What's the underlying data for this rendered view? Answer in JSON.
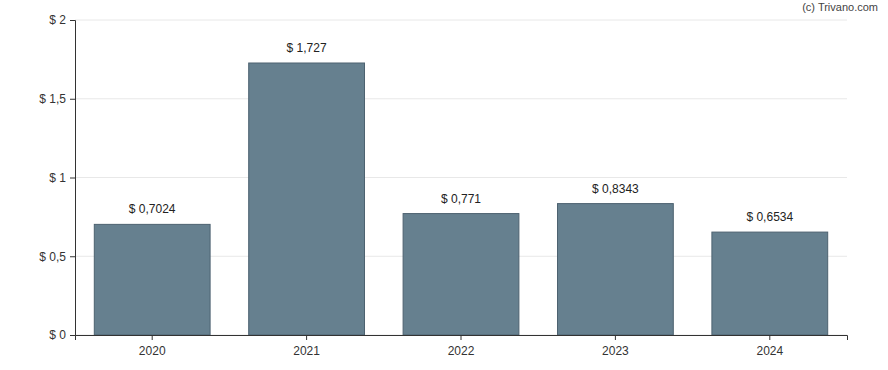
{
  "chart_data": {
    "type": "bar",
    "annotations": [
      "(c) Trivano.com"
    ],
    "categories": [
      "2020",
      "2021",
      "2022",
      "2023",
      "2024"
    ],
    "values": [
      0.7024,
      1.727,
      0.771,
      0.8343,
      0.6534
    ],
    "value_labels": [
      "$ 0,7024",
      "$ 1,727",
      "$ 0,771",
      "$ 0,8343",
      "$ 0,6534"
    ],
    "data_labels": true,
    "color": "#66808f",
    "ylim": [
      0,
      2
    ],
    "yticks": [
      {
        "value": 0,
        "label": "$ 0"
      },
      {
        "value": 0.5,
        "label": "$ 0,5"
      },
      {
        "value": 1,
        "label": "$ 1"
      },
      {
        "value": 1.5,
        "label": "$ 1,5"
      },
      {
        "value": 2,
        "label": "$ 2"
      }
    ],
    "grid": true
  }
}
